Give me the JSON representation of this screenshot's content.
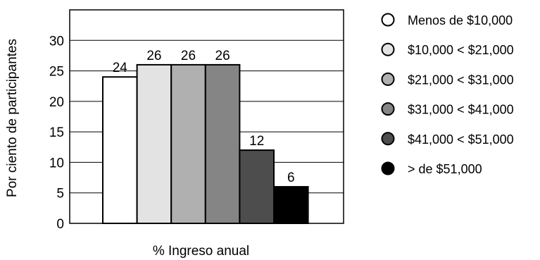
{
  "chart_data": {
    "type": "bar",
    "title": "",
    "xlabel": "% Ingreso anual",
    "ylabel": "Por ciento de participantes",
    "ylim": [
      0,
      35
    ],
    "yticks": [
      0,
      5,
      10,
      15,
      20,
      25,
      30
    ],
    "grid": true,
    "legend_position": "right",
    "categories": [
      "Menos de $10,000",
      "$10,000 < $21,000",
      "$21,000 < $31,000",
      "$31,000 < $41,000",
      "$41,000 < $51,000",
      "> de $51,000"
    ],
    "values": [
      24,
      26,
      26,
      26,
      12,
      6
    ],
    "data_labels": [
      "24",
      "26",
      "26",
      "26",
      "12",
      "6"
    ],
    "colors": [
      "#ffffff",
      "#e3e3e3",
      "#b0b0b0",
      "#858585",
      "#4d4d4d",
      "#000000"
    ]
  }
}
